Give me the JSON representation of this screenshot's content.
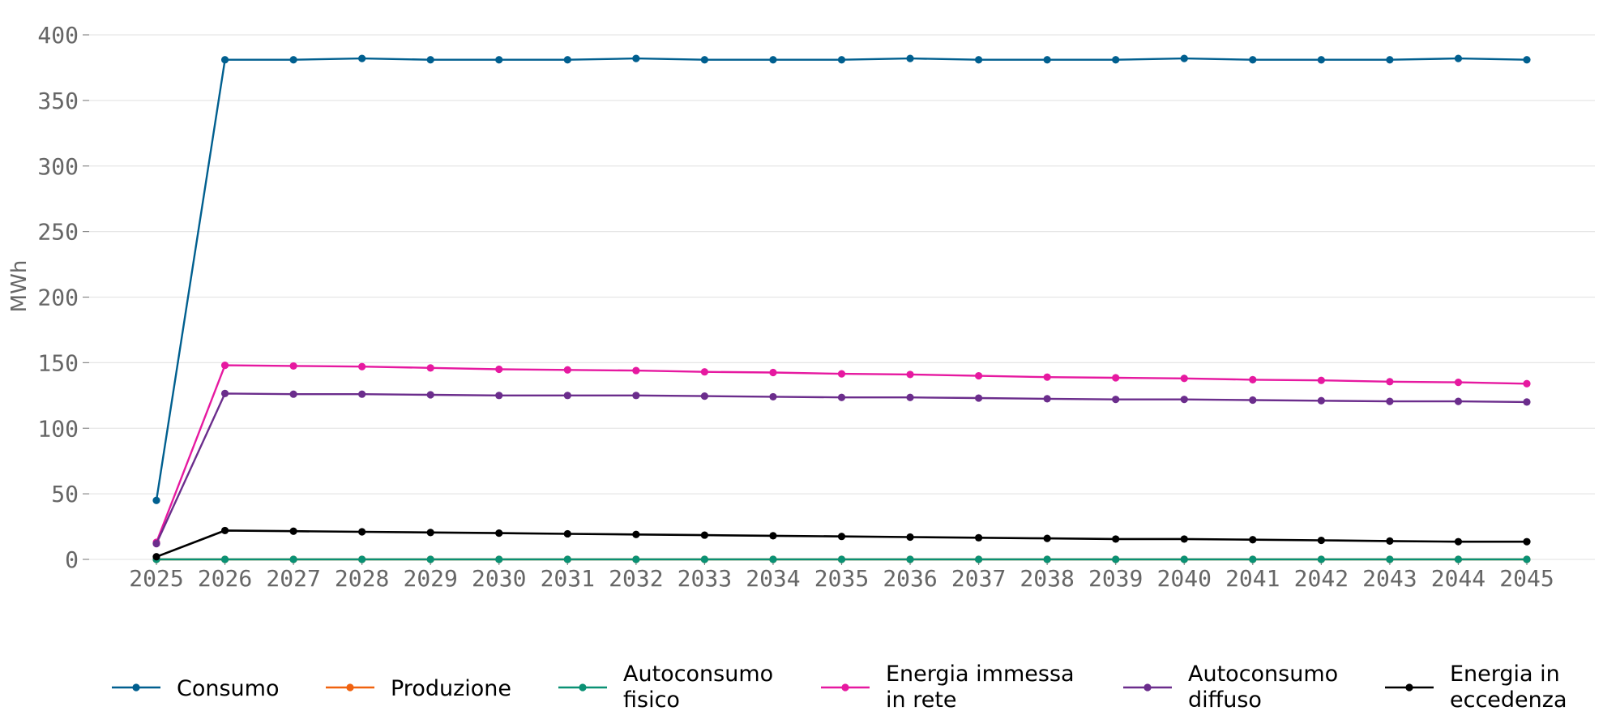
{
  "chart_data": {
    "type": "line",
    "ylabel": "MWh",
    "xlabel": "",
    "ylim": [
      0,
      400
    ],
    "yticks": [
      0,
      50,
      100,
      150,
      200,
      250,
      300,
      350,
      400
    ],
    "grid": "horizontal",
    "legend_position": "bottom",
    "x": [
      "2025",
      "2026",
      "2027",
      "2028",
      "2029",
      "2030",
      "2031",
      "2032",
      "2033",
      "2034",
      "2035",
      "2036",
      "2037",
      "2038",
      "2039",
      "2040",
      "2041",
      "2042",
      "2043",
      "2044",
      "2045"
    ],
    "series": [
      {
        "name": "Consumo",
        "color": "#005f8f",
        "lines": [
          "Consumo"
        ],
        "values": [
          45,
          381,
          381,
          382,
          381,
          381,
          381,
          382,
          381,
          381,
          381,
          382,
          381,
          381,
          381,
          382,
          381,
          381,
          381,
          382,
          381
        ]
      },
      {
        "name": "Produzione",
        "color": "#f0620f",
        "lines": [
          "Produzione"
        ],
        "values": [
          0,
          0,
          0,
          0,
          0,
          0,
          0,
          0,
          0,
          0,
          0,
          0,
          0,
          0,
          0,
          0,
          0,
          0,
          0,
          0,
          0
        ]
      },
      {
        "name": "Autoconsumo fisico",
        "color": "#0a9174",
        "lines": [
          "Autoconsumo",
          "fisico"
        ],
        "values": [
          0,
          0,
          0,
          0,
          0,
          0,
          0,
          0,
          0,
          0,
          0,
          0,
          0,
          0,
          0,
          0,
          0,
          0,
          0,
          0,
          0
        ]
      },
      {
        "name": "Energia immessa in rete",
        "color": "#e619a0",
        "lines": [
          "Energia immessa",
          "in rete"
        ],
        "values": [
          13,
          148,
          147.5,
          147,
          146,
          145,
          144.5,
          144,
          143,
          142.5,
          141.5,
          141,
          140,
          139,
          138.5,
          138,
          137,
          136.5,
          135.5,
          135,
          134
        ]
      },
      {
        "name": "Autoconsumo diffuso",
        "color": "#6b2d8c",
        "lines": [
          "Autoconsumo",
          "diffuso"
        ],
        "values": [
          12,
          126.5,
          126,
          126,
          125.5,
          125,
          125,
          125,
          124.5,
          124,
          123.5,
          123.5,
          123,
          122.5,
          122,
          122,
          121.5,
          121,
          120.5,
          120.5,
          120
        ]
      },
      {
        "name": "Energia in eccedenza",
        "color": "#000000",
        "lines": [
          "Energia in",
          "eccedenza"
        ],
        "values": [
          2,
          22,
          21.5,
          21,
          20.5,
          20,
          19.5,
          19,
          18.5,
          18,
          17.5,
          17,
          16.5,
          16,
          15.5,
          15.5,
          15,
          14.5,
          14,
          13.5,
          13.5
        ]
      }
    ]
  }
}
